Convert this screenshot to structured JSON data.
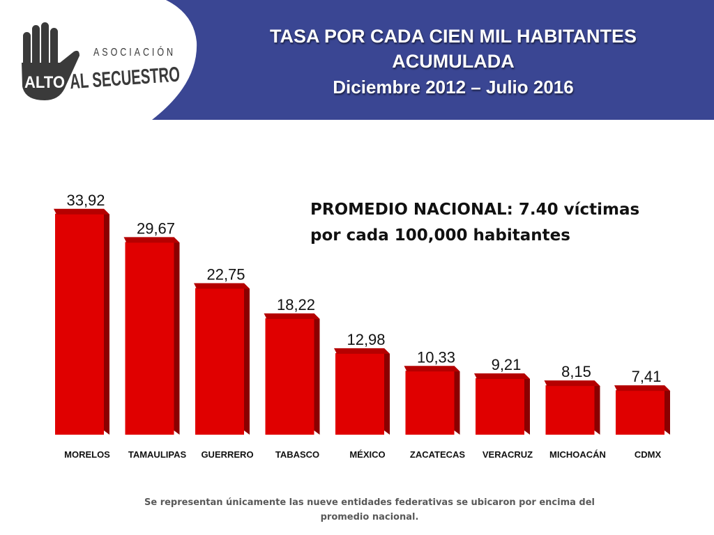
{
  "header": {
    "title_line1": "TASA POR CADA CIEN MIL HABITANTES",
    "title_line2": "ACUMULADA",
    "subtitle": "Diciembre 2012 – Julio 2016",
    "background_color": "#3a4693"
  },
  "logo": {
    "word_top": "ASOCIACIÓN",
    "word_hand": "ALTO",
    "word_main": "AL SECUESTRO",
    "icon": "raised-hand-icon"
  },
  "annotation": {
    "line1": "PROMEDIO NACIONAL: 7.40 víctimas",
    "line2": "por cada 100,000 habitantes"
  },
  "footnote": "Se representan únicamente las nueve entidades federativas se ubicaron por encima del promedio nacional.",
  "chart_data": {
    "type": "bar",
    "title": "TASA POR CADA CIEN MIL HABITANTES ACUMULADA",
    "subtitle": "Diciembre 2012 – Julio 2016",
    "categories": [
      "MORELOS",
      "TAMAULIPAS",
      "GUERRERO",
      "TABASCO",
      "MÉXICO",
      "ZACATECAS",
      "VERACRUZ",
      "MICHOACÁN",
      "CDMX"
    ],
    "values": [
      33.92,
      29.67,
      22.75,
      18.22,
      12.98,
      10.33,
      9.21,
      8.15,
      7.41
    ],
    "data_labels": [
      "33,92",
      "29,67",
      "22,75",
      "18,22",
      "12,98",
      "10,33",
      "9,21",
      "8,15",
      "7,41"
    ],
    "xlabel": "",
    "ylabel": "",
    "ylim": [
      0,
      34
    ],
    "grid": false,
    "legend": "none",
    "bar_color": "#e00000",
    "bar_side_color": "#8a0000",
    "bar_top_color": "#b50000"
  }
}
